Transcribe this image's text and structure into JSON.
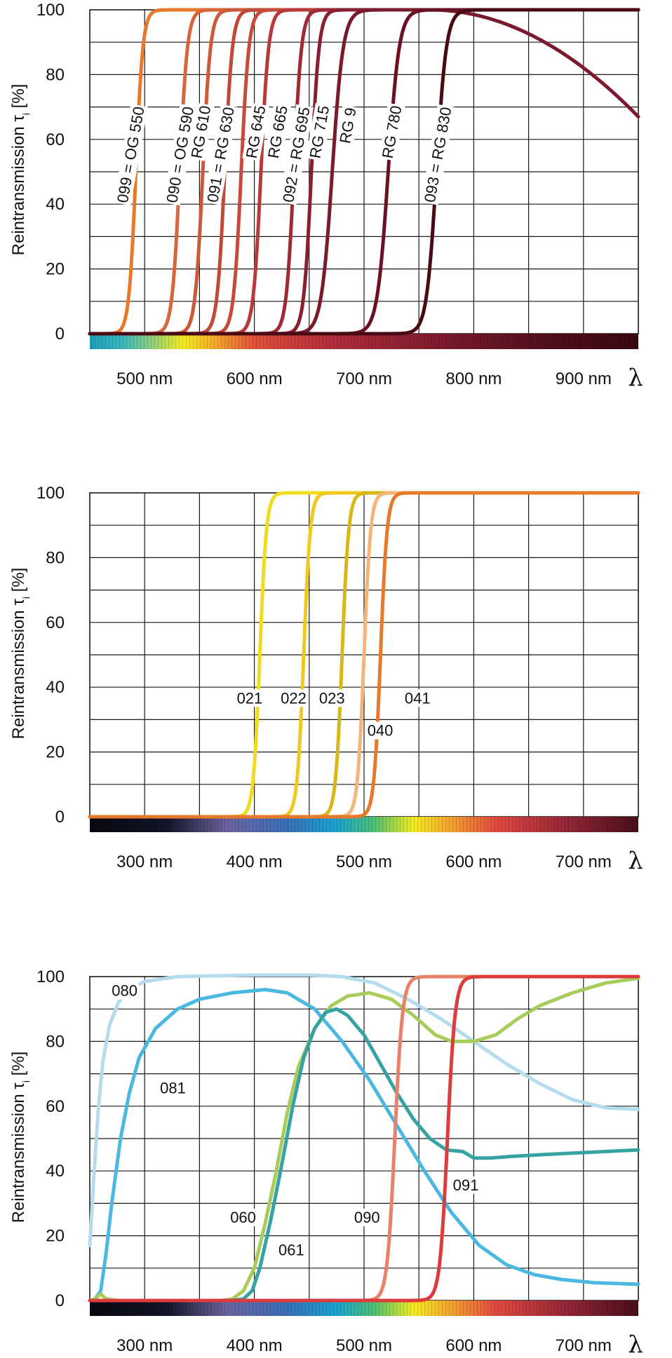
{
  "chart_data": [
    {
      "type": "line",
      "title": "",
      "ylabel": "Reintransmission",
      "ylabel_symbol": "τ",
      "ylabel_sub": "i",
      "ylabel_unit": "[%]",
      "xlabel": "λ",
      "xlim": [
        450,
        950
      ],
      "ylim": [
        0,
        100
      ],
      "xticks": [
        500,
        600,
        700,
        800,
        900
      ],
      "xtick_labels": [
        "500 nm",
        "600 nm",
        "700 nm",
        "800 nm",
        "900 nm"
      ],
      "yticks": [
        0,
        20,
        40,
        60,
        80,
        100
      ],
      "ytick_labels": [
        "0",
        "20",
        "40",
        "60",
        "80",
        "100"
      ],
      "spectrum_bar": true,
      "series": [
        {
          "name": "099 = OG 550",
          "color": "#e8782a",
          "shape": "sigmoid",
          "center": 492,
          "width": 3.2,
          "label_x": 492,
          "label_y": 55
        },
        {
          "name": "090 = OG 590",
          "color": "#d8663a",
          "shape": "sigmoid",
          "center": 532,
          "width": 3.5,
          "label_x": 537,
          "label_y": 55
        },
        {
          "name": "RG 610",
          "color": "#cc5a3a",
          "shape": "sigmoid",
          "center": 553,
          "width": 3.5,
          "label_x": 556,
          "label_y": 62
        },
        {
          "name": "091 = RG 630",
          "color": "#c04a38",
          "shape": "sigmoid",
          "center": 573,
          "width": 3.5,
          "label_x": 574,
          "label_y": 55
        },
        {
          "name": "RG 645",
          "color": "#c84a3c",
          "shape": "sigmoid",
          "center": 588,
          "width": 3.5,
          "label_x": 606,
          "label_y": 62
        },
        {
          "name": "RG 665",
          "color": "#b83a38",
          "shape": "sigmoid",
          "center": 606,
          "width": 3.5,
          "label_x": 626,
          "label_y": 62
        },
        {
          "name": "092 = RG 695",
          "color": "#a02a34",
          "shape": "sigmoid",
          "center": 636,
          "width": 3.5,
          "label_x": 643,
          "label_y": 55
        },
        {
          "name": "RG 715",
          "color": "#8a1f30",
          "shape": "sigmoid",
          "center": 652,
          "width": 3.5,
          "label_x": 664,
          "label_y": 62
        },
        {
          "name": "RG 9",
          "color": "#7a1a2c",
          "shape": "rg9",
          "center": 671,
          "width": 5,
          "label_x": 690,
          "label_y": 64
        },
        {
          "name": "RG 780",
          "color": "#6a1224",
          "shape": "sigmoid",
          "center": 722,
          "width": 5,
          "label_x": 730,
          "label_y": 62
        },
        {
          "name": "093 = RG 830",
          "color": "#4a0a14",
          "shape": "sigmoid",
          "center": 766,
          "width": 4.5,
          "label_x": 772,
          "label_y": 55
        }
      ]
    },
    {
      "type": "line",
      "title": "",
      "ylabel": "Reintransmission",
      "ylabel_symbol": "τ",
      "ylabel_sub": "i",
      "ylabel_unit": "[%]",
      "xlabel": "λ",
      "xlim": [
        250,
        750
      ],
      "ylim": [
        0,
        100
      ],
      "xticks": [
        300,
        400,
        500,
        600,
        700
      ],
      "xtick_labels": [
        "300 nm",
        "400 nm",
        "500 nm",
        "600 nm",
        "700 nm"
      ],
      "yticks": [
        0,
        20,
        40,
        60,
        80,
        100
      ],
      "ytick_labels": [
        "0",
        "20",
        "40",
        "60",
        "80",
        "100"
      ],
      "spectrum_bar": true,
      "series": [
        {
          "name": "021",
          "color": "#f0dc1e",
          "shape": "sigmoid",
          "center": 405,
          "width": 3,
          "label_x": 384,
          "label_y": 35
        },
        {
          "name": "022",
          "color": "#f0c81e",
          "shape": "sigmoid",
          "center": 445,
          "width": 3,
          "label_x": 424,
          "label_y": 35
        },
        {
          "name": "023",
          "color": "#d8b818",
          "shape": "sigmoid",
          "center": 480,
          "width": 3,
          "label_x": 459,
          "label_y": 35
        },
        {
          "name": "040",
          "color": "#f4b47a",
          "shape": "sigmoid",
          "center": 500,
          "width": 3,
          "label_x": 503,
          "label_y": 25
        },
        {
          "name": "041",
          "color": "#e8782a",
          "shape": "sigmoid",
          "center": 515,
          "width": 3,
          "label_x": 537,
          "label_y": 35
        }
      ]
    },
    {
      "type": "line",
      "title": "",
      "ylabel": "Reintransmission",
      "ylabel_symbol": "τ",
      "ylabel_sub": "i",
      "ylabel_unit": "[%]",
      "xlabel": "λ",
      "xlim": [
        250,
        750
      ],
      "ylim": [
        0,
        100
      ],
      "xticks": [
        300,
        400,
        500,
        600,
        700
      ],
      "xtick_labels": [
        "300 nm",
        "400 nm",
        "500 nm",
        "600 nm",
        "700 nm"
      ],
      "yticks": [
        0,
        20,
        40,
        60,
        80,
        100
      ],
      "ytick_labels": [
        "0",
        "20",
        "40",
        "60",
        "80",
        "100"
      ],
      "spectrum_bar": true,
      "series": [
        {
          "name": "080",
          "color": "#b4dcec",
          "label_x": 270,
          "label_y": 94,
          "points": [
            [
              250,
              17
            ],
            [
              254,
              40
            ],
            [
              258,
              60
            ],
            [
              262,
              74
            ],
            [
              268,
              85
            ],
            [
              276,
              92
            ],
            [
              285,
              96
            ],
            [
              300,
              98.5
            ],
            [
              330,
              100
            ],
            [
              400,
              100.5
            ],
            [
              450,
              100.5
            ],
            [
              480,
              100
            ],
            [
              510,
              98
            ],
            [
              540,
              93
            ],
            [
              570,
              87
            ],
            [
              600,
              80
            ],
            [
              630,
              73
            ],
            [
              660,
              67
            ],
            [
              690,
              62
            ],
            [
              720,
              59.5
            ],
            [
              750,
              59
            ]
          ]
        },
        {
          "name": "081",
          "color": "#4ab8e0",
          "label_x": 314,
          "label_y": 64,
          "points": [
            [
              250,
              0
            ],
            [
              255,
              0.5
            ],
            [
              260,
              3
            ],
            [
              265,
              15
            ],
            [
              270,
              30
            ],
            [
              278,
              50
            ],
            [
              286,
              64
            ],
            [
              295,
              75
            ],
            [
              310,
              84
            ],
            [
              330,
              90
            ],
            [
              350,
              93
            ],
            [
              380,
              95
            ],
            [
              410,
              96
            ],
            [
              430,
              95
            ],
            [
              455,
              90
            ],
            [
              480,
              80
            ],
            [
              505,
              68
            ],
            [
              530,
              54
            ],
            [
              555,
              40
            ],
            [
              580,
              27
            ],
            [
              605,
              17
            ],
            [
              630,
              11
            ],
            [
              655,
              8
            ],
            [
              680,
              6.5
            ],
            [
              710,
              5.5
            ],
            [
              750,
              5
            ]
          ]
        },
        {
          "name": "060",
          "color": "#a8cc5a",
          "label_x": 378,
          "label_y": 24,
          "points": [
            [
              250,
              0
            ],
            [
              255,
              0.5
            ],
            [
              260,
              2
            ],
            [
              265,
              0.5
            ],
            [
              275,
              0
            ],
            [
              370,
              0
            ],
            [
              380,
              0.5
            ],
            [
              390,
              3
            ],
            [
              400,
              10
            ],
            [
              410,
              24
            ],
            [
              420,
              40
            ],
            [
              430,
              58
            ],
            [
              440,
              72
            ],
            [
              455,
              84
            ],
            [
              470,
              91
            ],
            [
              485,
              94
            ],
            [
              505,
              95
            ],
            [
              525,
              93
            ],
            [
              545,
              88
            ],
            [
              565,
              82
            ],
            [
              580,
              80
            ],
            [
              600,
              80
            ],
            [
              620,
              82
            ],
            [
              640,
              87
            ],
            [
              660,
              91
            ],
            [
              690,
              95
            ],
            [
              720,
              98
            ],
            [
              750,
              99.5
            ]
          ]
        },
        {
          "name": "061",
          "color": "#36a2a2",
          "label_x": 422,
          "label_y": 14,
          "points": [
            [
              250,
              0
            ],
            [
              380,
              0
            ],
            [
              390,
              0.5
            ],
            [
              398,
              3
            ],
            [
              405,
              10
            ],
            [
              415,
              25
            ],
            [
              425,
              42
            ],
            [
              435,
              60
            ],
            [
              445,
              75
            ],
            [
              455,
              84
            ],
            [
              465,
              89
            ],
            [
              475,
              90
            ],
            [
              485,
              88
            ],
            [
              500,
              82
            ],
            [
              515,
              73
            ],
            [
              530,
              64
            ],
            [
              545,
              56
            ],
            [
              560,
              50
            ],
            [
              575,
              46.5
            ],
            [
              590,
              46
            ],
            [
              600,
              44
            ],
            [
              615,
              44
            ],
            [
              635,
              44.5
            ],
            [
              660,
              45
            ],
            [
              690,
              45.5
            ],
            [
              720,
              46
            ],
            [
              750,
              46.5
            ]
          ]
        },
        {
          "name": "090",
          "color": "#e8806a",
          "shape": "sigmoid",
          "center": 528,
          "width": 3.5,
          "label_x": 491,
          "label_y": 24
        },
        {
          "name": "091",
          "color": "#dc3c3c",
          "shape": "sigmoid",
          "center": 576,
          "width": 3.5,
          "label_x": 581,
          "label_y": 34
        }
      ]
    }
  ]
}
